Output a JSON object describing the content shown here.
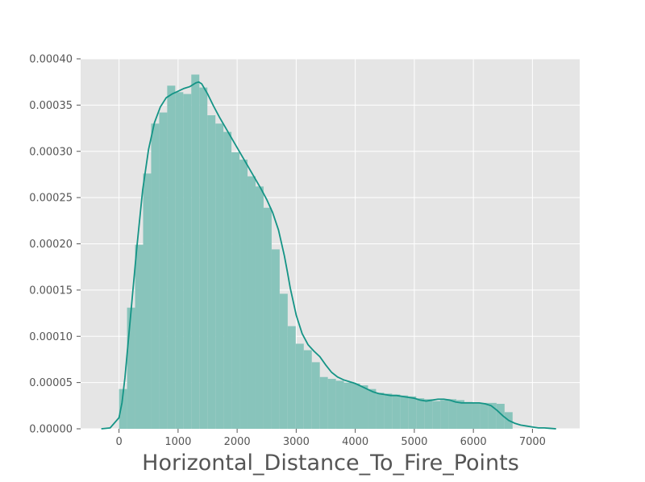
{
  "chart_data": {
    "type": "histogram",
    "title": "",
    "xlabel": "Horizontal_Distance_To_Fire_Points",
    "ylabel": "",
    "xlim": [
      -650,
      7800
    ],
    "ylim": [
      0,
      0.0004
    ],
    "grid": true,
    "colors": {
      "background": "#e5e5e5",
      "bars": "#88c4bb",
      "kde": "#159486",
      "grid": "#ffffff",
      "text": "#555555"
    },
    "x_ticks": [
      {
        "value": 0,
        "label": "0"
      },
      {
        "value": 1000,
        "label": "1000"
      },
      {
        "value": 2000,
        "label": "2000"
      },
      {
        "value": 3000,
        "label": "3000"
      },
      {
        "value": 4000,
        "label": "4000"
      },
      {
        "value": 5000,
        "label": "5000"
      },
      {
        "value": 6000,
        "label": "6000"
      },
      {
        "value": 7000,
        "label": "7000"
      }
    ],
    "y_ticks": [
      {
        "value": 0,
        "label": "0.00000"
      },
      {
        "value": 5e-05,
        "label": "0.00005"
      },
      {
        "value": 0.0001,
        "label": "0.00010"
      },
      {
        "value": 0.00015,
        "label": "0.00015"
      },
      {
        "value": 0.0002,
        "label": "0.00020"
      },
      {
        "value": 0.00025,
        "label": "0.00025"
      },
      {
        "value": 0.0003,
        "label": "0.00030"
      },
      {
        "value": 0.00035,
        "label": "0.00035"
      },
      {
        "value": 0.0004,
        "label": "0.00040"
      }
    ],
    "bins": {
      "start": 0,
      "width": 136,
      "density": [
        4.3e-05,
        0.000131,
        0.000199,
        0.000276,
        0.00033,
        0.000342,
        0.000371,
        0.000364,
        0.000362,
        0.000383,
        0.000369,
        0.000339,
        0.00033,
        0.000321,
        0.000299,
        0.000291,
        0.000273,
        0.000262,
        0.000239,
        0.000194,
        0.000146,
        0.000111,
        9.2e-05,
        8.5e-05,
        7.2e-05,
        5.6e-05,
        5.4e-05,
        5.2e-05,
        5e-05,
        4.9e-05,
        4.7e-05,
        4.3e-05,
        3.9e-05,
        3.8e-05,
        3.7e-05,
        3.6e-05,
        3.5e-05,
        3.3e-05,
        3.2e-05,
        3e-05,
        3.1e-05,
        3.2e-05,
        3.1e-05,
        2.9e-05,
        2.8e-05,
        2.8e-05,
        2.8e-05,
        2.7e-05,
        1.8e-05
      ]
    },
    "kde": {
      "x": [
        -300,
        -150,
        0,
        50,
        100,
        200,
        300,
        400,
        500,
        600,
        700,
        800,
        900,
        1000,
        1100,
        1200,
        1300,
        1350,
        1400,
        1500,
        1600,
        1700,
        1800,
        1900,
        2000,
        2100,
        2200,
        2300,
        2400,
        2500,
        2600,
        2700,
        2800,
        2850,
        2900,
        3000,
        3100,
        3200,
        3300,
        3400,
        3500,
        3600,
        3700,
        3800,
        3900,
        4000,
        4100,
        4200,
        4300,
        4400,
        4500,
        4600,
        4700,
        4800,
        4900,
        5000,
        5100,
        5200,
        5300,
        5400,
        5500,
        5600,
        5700,
        5800,
        5900,
        6000,
        6100,
        6200,
        6300,
        6400,
        6500,
        6600,
        6700,
        6800,
        6900,
        7000,
        7100,
        7200,
        7300,
        7400
      ],
      "y": [
        0.0,
        1e-06,
        1.2e-05,
        2.8e-05,
        5.5e-05,
        0.000125,
        0.000195,
        0.000258,
        0.000302,
        0.000331,
        0.000348,
        0.000358,
        0.000362,
        0.000365,
        0.000368,
        0.00037,
        0.000374,
        0.000375,
        0.000373,
        0.000362,
        0.000349,
        0.000337,
        0.000326,
        0.000315,
        0.000304,
        0.000293,
        0.000282,
        0.000271,
        0.00026,
        0.000248,
        0.000234,
        0.000215,
        0.000187,
        0.00017,
        0.000152,
        0.000123,
        0.000103,
        9.1e-05,
        8.4e-05,
        7.8e-05,
        6.9e-05,
        6.1e-05,
        5.6e-05,
        5.3e-05,
        5.1e-05,
        4.9e-05,
        4.6e-05,
        4.3e-05,
        4e-05,
        3.8e-05,
        3.7e-05,
        3.6e-05,
        3.6e-05,
        3.5e-05,
        3.4e-05,
        3.3e-05,
        3.1e-05,
        3e-05,
        3.1e-05,
        3.2e-05,
        3.2e-05,
        3.1e-05,
        2.9e-05,
        2.8e-05,
        2.8e-05,
        2.8e-05,
        2.8e-05,
        2.7e-05,
        2.5e-05,
        2e-05,
        1.4e-05,
        9e-06,
        6e-06,
        4e-06,
        3e-06,
        2e-06,
        1e-06,
        1e-06,
        5e-07,
        0.0
      ]
    }
  }
}
